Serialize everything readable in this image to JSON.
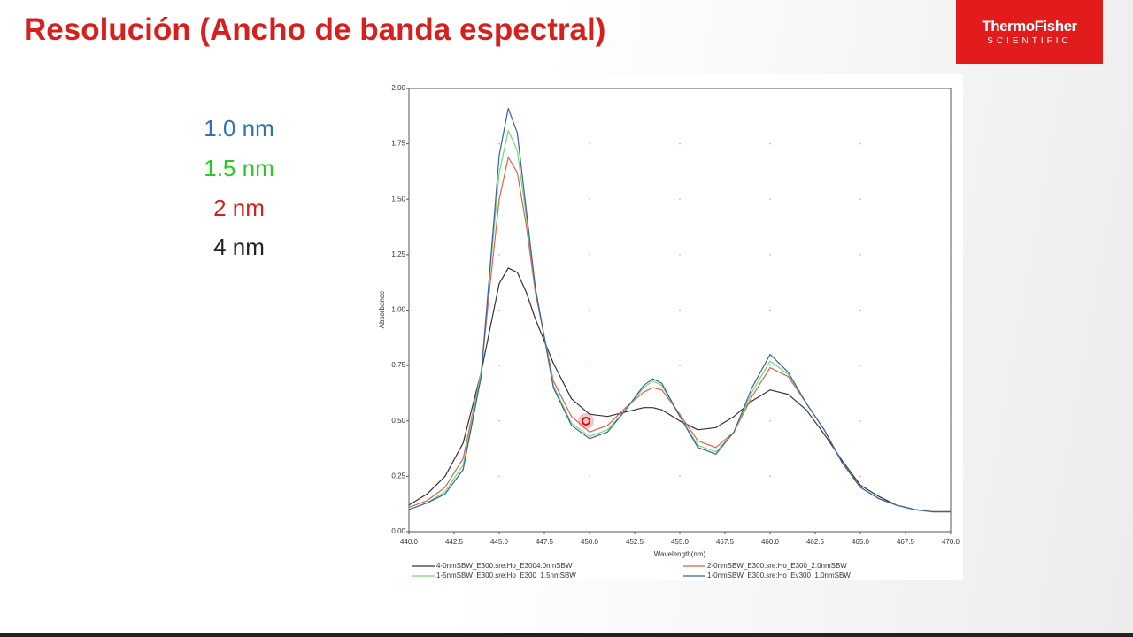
{
  "slide": {
    "title": "Resolución (Ancho de banda espectral)",
    "logo_line1": "ThermoFisher",
    "logo_line2": "SCIENTIFIC",
    "labels": [
      "1.0 nm",
      "1.5 nm",
      "2 nm",
      "4 nm"
    ]
  },
  "chart_data": {
    "type": "line",
    "x_label": "Wavelength(nm)",
    "y_label": "Absorbance",
    "x": [
      440,
      441,
      442,
      443,
      444,
      444.5,
      445,
      445.5,
      446,
      446.5,
      447,
      448,
      449,
      450,
      451,
      452,
      453,
      453.5,
      454,
      455,
      456,
      457,
      458,
      459,
      460,
      461,
      462,
      463,
      464,
      465,
      466,
      467,
      468,
      469,
      470
    ],
    "series": [
      {
        "name": "4-0nmSBW_E300.sre:Ho_E3004.0nmSBW",
        "color": "#333333",
        "values": [
          0.12,
          0.17,
          0.25,
          0.4,
          0.72,
          0.92,
          1.12,
          1.19,
          1.17,
          1.08,
          0.96,
          0.76,
          0.6,
          0.53,
          0.52,
          0.54,
          0.56,
          0.56,
          0.55,
          0.5,
          0.46,
          0.47,
          0.52,
          0.59,
          0.64,
          0.62,
          0.55,
          0.44,
          0.32,
          0.21,
          0.16,
          0.12,
          0.1,
          0.09,
          0.09
        ]
      },
      {
        "name": "2-0nmSBW_E300.sre:Ho_E300_2.0nmSBW",
        "color": "#e0604a",
        "values": [
          0.11,
          0.14,
          0.2,
          0.33,
          0.72,
          1.12,
          1.5,
          1.69,
          1.62,
          1.38,
          1.08,
          0.68,
          0.52,
          0.45,
          0.48,
          0.56,
          0.63,
          0.65,
          0.64,
          0.53,
          0.41,
          0.38,
          0.45,
          0.61,
          0.74,
          0.7,
          0.58,
          0.46,
          0.31,
          0.2,
          0.15,
          0.12,
          0.1,
          0.09,
          0.09
        ]
      },
      {
        "name": "1-5nmSBW_E300.sre:Ho_E300_1.5nmSBW",
        "color": "#6fdc7a",
        "values": [
          0.1,
          0.13,
          0.18,
          0.3,
          0.72,
          1.18,
          1.62,
          1.81,
          1.72,
          1.42,
          1.1,
          0.66,
          0.49,
          0.43,
          0.46,
          0.55,
          0.65,
          0.68,
          0.66,
          0.52,
          0.39,
          0.36,
          0.45,
          0.63,
          0.77,
          0.71,
          0.58,
          0.46,
          0.31,
          0.2,
          0.15,
          0.12,
          0.1,
          0.09,
          0.09
        ]
      },
      {
        "name": "1-0nmSBW_E300.sre:Ho_Ev300_1.0nmSBW",
        "color": "#3a5ea8",
        "values": [
          0.1,
          0.13,
          0.17,
          0.28,
          0.7,
          1.2,
          1.7,
          1.91,
          1.8,
          1.45,
          1.1,
          0.65,
          0.48,
          0.42,
          0.45,
          0.55,
          0.66,
          0.69,
          0.67,
          0.52,
          0.38,
          0.35,
          0.45,
          0.65,
          0.8,
          0.72,
          0.58,
          0.46,
          0.31,
          0.2,
          0.15,
          0.12,
          0.1,
          0.09,
          0.09
        ]
      }
    ],
    "xlim": [
      440,
      470
    ],
    "xticks": [
      {
        "value": 440,
        "label": "440.0"
      },
      {
        "value": 442.5,
        "label": "442.5"
      },
      {
        "value": 445,
        "label": "445.0"
      },
      {
        "value": 447.5,
        "label": "447.5"
      },
      {
        "value": 450,
        "label": "450.0"
      },
      {
        "value": 452.5,
        "label": "452.5"
      },
      {
        "value": 455,
        "label": "455.0"
      },
      {
        "value": 457.5,
        "label": "457.5"
      },
      {
        "value": 460,
        "label": "460.0"
      },
      {
        "value": 462.5,
        "label": "462.5"
      },
      {
        "value": 465,
        "label": "465.0"
      },
      {
        "value": 467.5,
        "label": "467.5"
      },
      {
        "value": 470,
        "label": "470.0"
      }
    ],
    "ylim": [
      0,
      2
    ],
    "yticks": [
      {
        "value": 0,
        "label": "0.00"
      },
      {
        "value": 0.25,
        "label": "0.25"
      },
      {
        "value": 0.5,
        "label": "0.50"
      },
      {
        "value": 0.75,
        "label": "0.75"
      },
      {
        "value": 1,
        "label": "1.00"
      },
      {
        "value": 1.25,
        "label": "1.25"
      },
      {
        "value": 1.5,
        "label": "1.50"
      },
      {
        "value": 1.75,
        "label": "1.75"
      },
      {
        "value": 2,
        "label": "2.00"
      }
    ],
    "grid": true
  }
}
